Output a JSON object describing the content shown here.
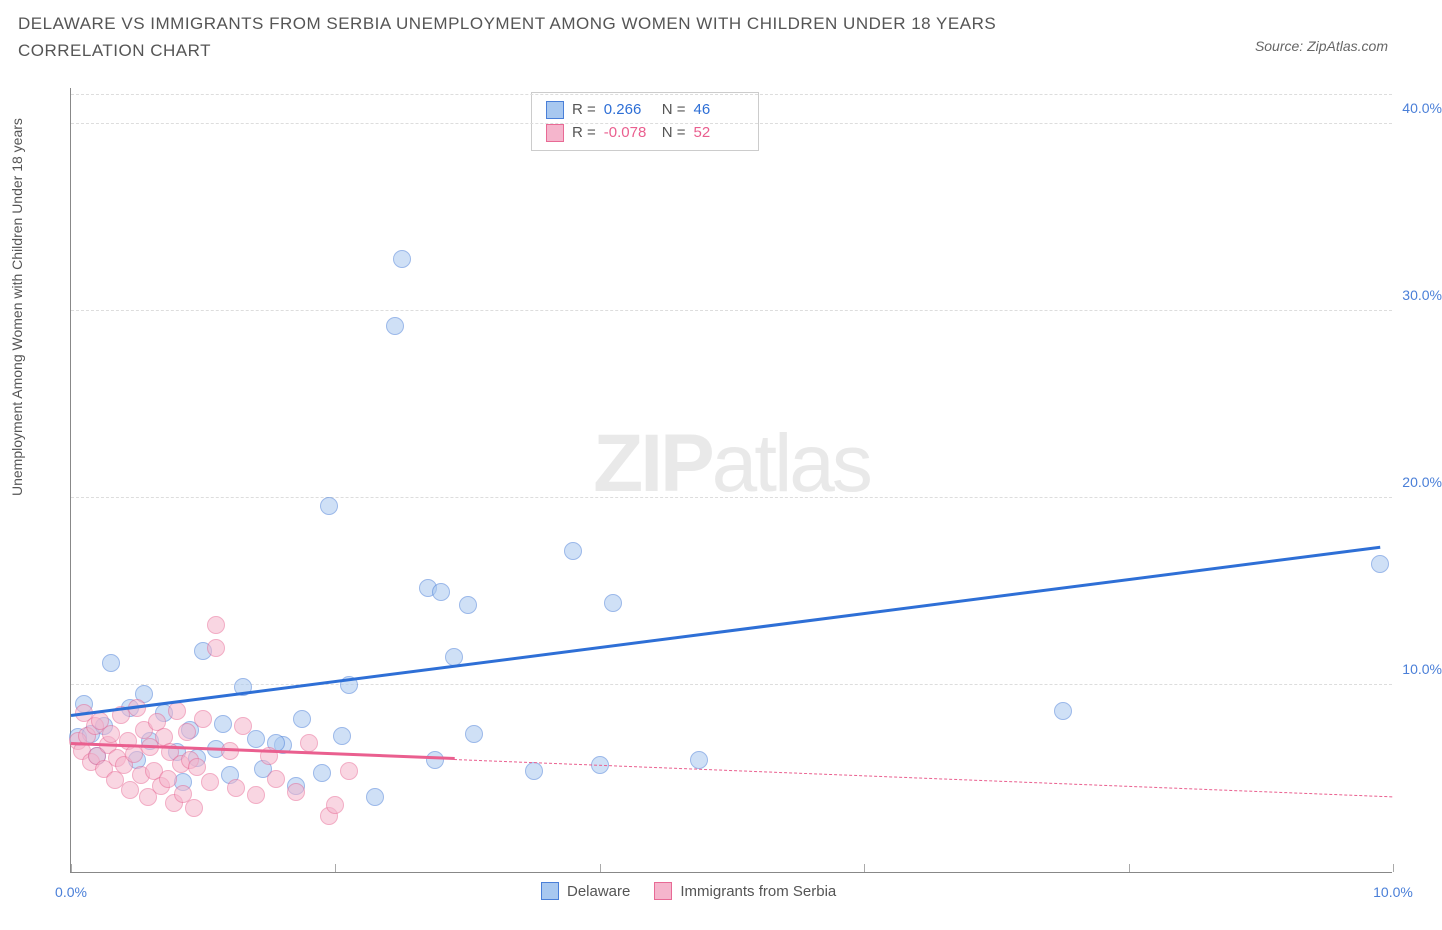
{
  "title": "DELAWARE VS IMMIGRANTS FROM SERBIA UNEMPLOYMENT AMONG WOMEN WITH CHILDREN UNDER 18 YEARS CORRELATION CHART",
  "source": "Source: ZipAtlas.com",
  "y_axis_label": "Unemployment Among Women with Children Under 18 years",
  "watermark_a": "ZIP",
  "watermark_b": "atlas",
  "chart": {
    "type": "scatter",
    "background_color": "#ffffff",
    "grid_color": "#dddddd",
    "axis_color": "#888888",
    "xlim": [
      0,
      10
    ],
    "ylim": [
      0,
      42
    ],
    "x_ticks": [
      0,
      2,
      4,
      6,
      8,
      10
    ],
    "x_tick_labels": [
      "0.0%",
      "",
      "",
      "",
      "",
      "10.0%"
    ],
    "y_ticks": [
      10,
      20,
      30,
      40
    ],
    "y_tick_labels": [
      "10.0%",
      "20.0%",
      "30.0%",
      "40.0%"
    ],
    "y_tick_color": "#4a7fd8",
    "x_tick_color": "#4a7fd8",
    "point_radius": 9,
    "point_opacity": 0.55,
    "series": [
      {
        "name": "Delaware",
        "color": "#6fa4e8",
        "stroke": "#4a7fd8",
        "fill": "#a8c8f0",
        "trend_color": "#2e6fd6",
        "R": "0.266",
        "N": "46",
        "trend": {
          "x1": 0.0,
          "y1": 8.3,
          "x2": 9.9,
          "y2": 17.3,
          "dash_from_x": 9.9
        },
        "points": [
          [
            0.05,
            7.2
          ],
          [
            0.1,
            9.0
          ],
          [
            0.15,
            7.4
          ],
          [
            0.2,
            6.2
          ],
          [
            0.25,
            7.8
          ],
          [
            0.3,
            11.2
          ],
          [
            0.45,
            8.8
          ],
          [
            0.5,
            6.0
          ],
          [
            0.55,
            9.5
          ],
          [
            0.6,
            7.0
          ],
          [
            0.7,
            8.5
          ],
          [
            0.8,
            6.4
          ],
          [
            0.85,
            4.8
          ],
          [
            0.9,
            7.6
          ],
          [
            1.0,
            11.8
          ],
          [
            1.1,
            6.6
          ],
          [
            1.2,
            5.2
          ],
          [
            1.3,
            9.9
          ],
          [
            1.4,
            7.1
          ],
          [
            1.45,
            5.5
          ],
          [
            1.6,
            6.8
          ],
          [
            1.7,
            4.6
          ],
          [
            1.75,
            8.2
          ],
          [
            1.9,
            5.3
          ],
          [
            1.95,
            19.6
          ],
          [
            2.05,
            7.3
          ],
          [
            2.1,
            10.0
          ],
          [
            2.3,
            4.0
          ],
          [
            2.45,
            29.2
          ],
          [
            2.5,
            32.8
          ],
          [
            2.7,
            15.2
          ],
          [
            2.75,
            6.0
          ],
          [
            2.8,
            15.0
          ],
          [
            2.9,
            11.5
          ],
          [
            3.0,
            14.3
          ],
          [
            3.05,
            7.4
          ],
          [
            3.5,
            5.4
          ],
          [
            3.8,
            17.2
          ],
          [
            4.0,
            5.7
          ],
          [
            4.1,
            14.4
          ],
          [
            4.75,
            6.0
          ],
          [
            7.5,
            8.6
          ],
          [
            9.9,
            16.5
          ],
          [
            1.55,
            6.9
          ],
          [
            0.95,
            6.1
          ],
          [
            1.15,
            7.9
          ]
        ]
      },
      {
        "name": "Immigrants from Serbia",
        "color": "#f08fb1",
        "stroke": "#e86a95",
        "fill": "#f5b5cc",
        "trend_color": "#ea5f8f",
        "R": "-0.078",
        "N": "52",
        "trend": {
          "x1": 0.0,
          "y1": 6.8,
          "x2": 2.9,
          "y2": 6.0,
          "dash_to_x": 10.0,
          "dash_to_y": 4.0
        },
        "points": [
          [
            0.05,
            7.0
          ],
          [
            0.08,
            6.5
          ],
          [
            0.12,
            7.3
          ],
          [
            0.15,
            5.9
          ],
          [
            0.18,
            7.8
          ],
          [
            0.2,
            6.2
          ],
          [
            0.22,
            8.1
          ],
          [
            0.25,
            5.5
          ],
          [
            0.28,
            6.8
          ],
          [
            0.3,
            7.4
          ],
          [
            0.33,
            4.9
          ],
          [
            0.35,
            6.1
          ],
          [
            0.38,
            8.4
          ],
          [
            0.4,
            5.7
          ],
          [
            0.43,
            7.0
          ],
          [
            0.45,
            4.4
          ],
          [
            0.48,
            6.3
          ],
          [
            0.5,
            8.8
          ],
          [
            0.53,
            5.2
          ],
          [
            0.55,
            7.6
          ],
          [
            0.58,
            4.0
          ],
          [
            0.6,
            6.7
          ],
          [
            0.63,
            5.4
          ],
          [
            0.65,
            8.0
          ],
          [
            0.68,
            4.6
          ],
          [
            0.7,
            7.2
          ],
          [
            0.73,
            5.0
          ],
          [
            0.75,
            6.4
          ],
          [
            0.78,
            3.7
          ],
          [
            0.8,
            8.6
          ],
          [
            0.83,
            5.8
          ],
          [
            0.85,
            4.2
          ],
          [
            0.88,
            7.5
          ],
          [
            0.9,
            6.0
          ],
          [
            0.93,
            3.4
          ],
          [
            0.95,
            5.6
          ],
          [
            1.0,
            8.2
          ],
          [
            1.05,
            4.8
          ],
          [
            1.1,
            12.0
          ],
          [
            1.1,
            13.2
          ],
          [
            1.2,
            6.5
          ],
          [
            1.25,
            4.5
          ],
          [
            1.3,
            7.8
          ],
          [
            1.4,
            4.1
          ],
          [
            1.5,
            6.2
          ],
          [
            1.55,
            5.0
          ],
          [
            1.7,
            4.3
          ],
          [
            1.8,
            6.9
          ],
          [
            1.95,
            3.0
          ],
          [
            2.1,
            5.4
          ],
          [
            2.0,
            3.6
          ],
          [
            0.1,
            8.5
          ]
        ]
      }
    ]
  },
  "legend_labels": {
    "r_eq": "R =",
    "n_eq": "N =",
    "delaware": "Delaware",
    "serbia": "Immigrants from Serbia"
  }
}
